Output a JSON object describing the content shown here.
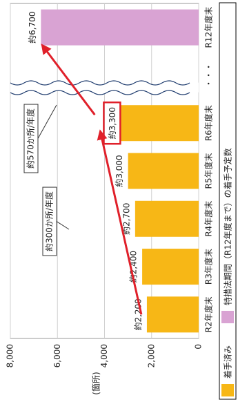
{
  "chart_data": {
    "type": "bar",
    "categories": [
      "R2年度末",
      "R3年度末",
      "R4年度末",
      "R5年度末",
      "R6年度末",
      "・・・",
      "R12年度末"
    ],
    "series": [
      {
        "name": "着手済み",
        "color": "#f7b716",
        "values": [
          2200,
          2400,
          2700,
          3000,
          3300,
          null,
          null
        ],
        "value_labels": [
          "約2,200",
          "約2,400",
          "約2,700",
          "約3,000",
          "約3,300",
          null,
          null
        ]
      },
      {
        "name": "特措法期間（R12年度まで）の着手予定数",
        "color": "#d9a3d3",
        "values": [
          null,
          null,
          null,
          null,
          null,
          null,
          6700
        ],
        "value_labels": [
          null,
          null,
          null,
          null,
          null,
          null,
          "約6,700"
        ]
      }
    ],
    "y_label": "(箇所)",
    "ylim": [
      0,
      8000
    ],
    "yticks": [
      0,
      {
        "value": 2000,
        "label": "2,000"
      },
      {
        "value": 4000,
        "label": "4,000"
      },
      {
        "value": 6000,
        "label": "6,000"
      },
      {
        "value": 8000,
        "label": "8,000"
      }
    ],
    "grid": true,
    "annotations": [
      "約300か所/年度",
      "約570か所/年度"
    ]
  }
}
